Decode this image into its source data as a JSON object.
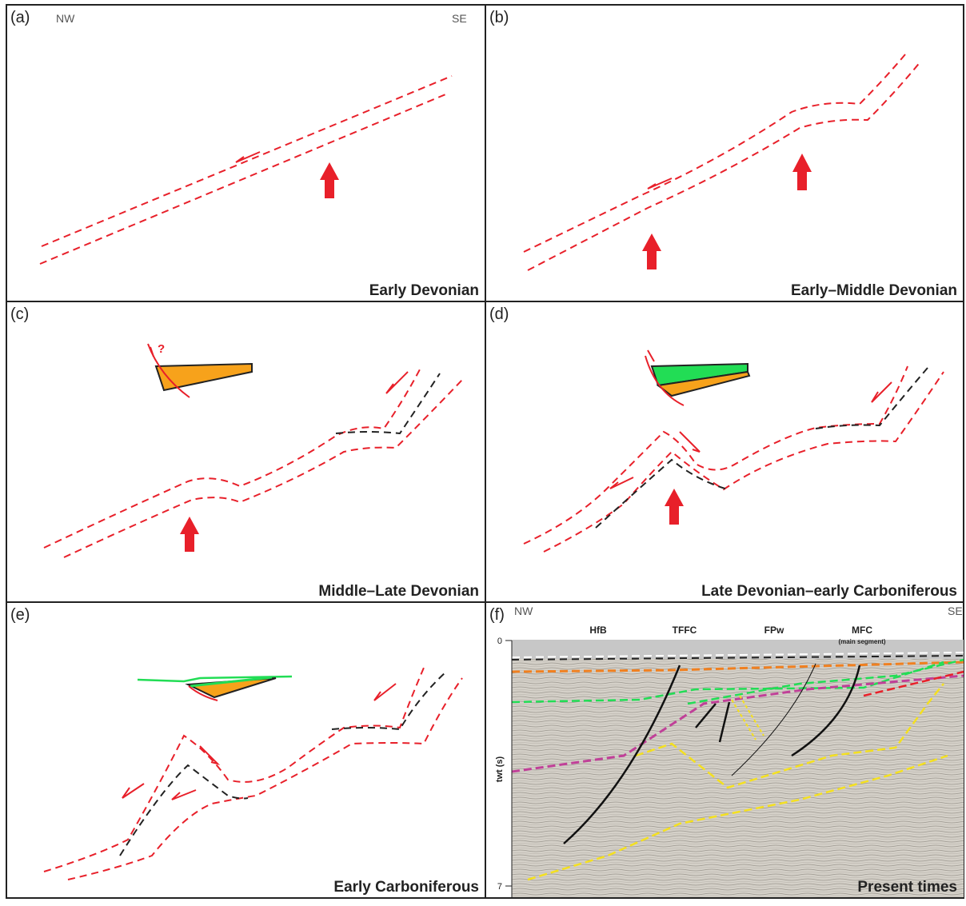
{
  "panels": [
    {
      "label": "(a)",
      "title": "Early Devonian",
      "left_label": "NW",
      "right_label": "SE"
    },
    {
      "label": "(b)",
      "title": "Early–Middle Devonian"
    },
    {
      "label": "(c)",
      "title": "Middle–Late Devonian",
      "note": "?"
    },
    {
      "label": "(d)",
      "title": "Late Devonian–early Carboniferous"
    },
    {
      "label": "(e)",
      "title": "Early Carboniferous"
    },
    {
      "label": "(f)",
      "title": "Present times",
      "left_label": "NW",
      "right_label": "SE",
      "features": [
        "HfB",
        "TFFC",
        "FPw",
        "MFC"
      ],
      "feature_note": "(main segment)",
      "axis": {
        "label": "twt (s)",
        "ticks": [
          0,
          7
        ]
      }
    }
  ]
}
